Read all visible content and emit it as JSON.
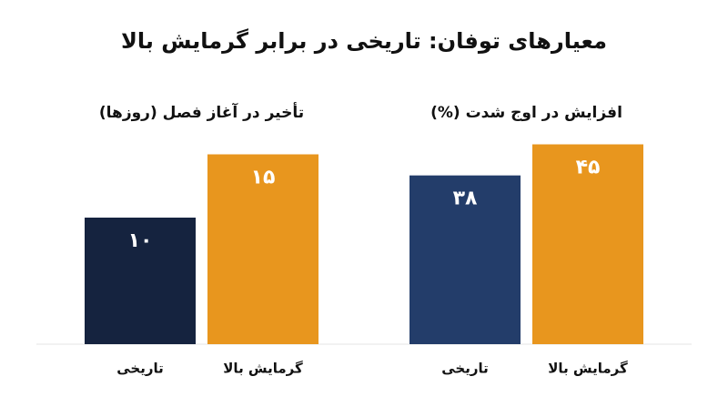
{
  "title": "معیارهای توفان: تاریخی در برابر گرمایش بالا",
  "chart_data": [
    {
      "type": "bar",
      "title": "افزایش در اوج شدت (%)",
      "categories": [
        "تاریخی",
        "گرمایش بالا"
      ],
      "values": [
        38,
        45
      ],
      "value_labels": [
        "۳۸",
        "۴۵"
      ],
      "colors": [
        "#233d6a",
        "#e8961e"
      ],
      "ylim": [
        0,
        57
      ]
    },
    {
      "type": "bar",
      "title": "تأخیر در آغاز فصل (روزها)",
      "categories": [
        "تاریخی",
        "گرمایش بالا"
      ],
      "values": [
        10,
        15
      ],
      "value_labels": [
        "۱۰",
        "۱۵"
      ],
      "colors": [
        "#15233f",
        "#e8961e"
      ],
      "ylim": [
        0,
        20
      ]
    }
  ]
}
